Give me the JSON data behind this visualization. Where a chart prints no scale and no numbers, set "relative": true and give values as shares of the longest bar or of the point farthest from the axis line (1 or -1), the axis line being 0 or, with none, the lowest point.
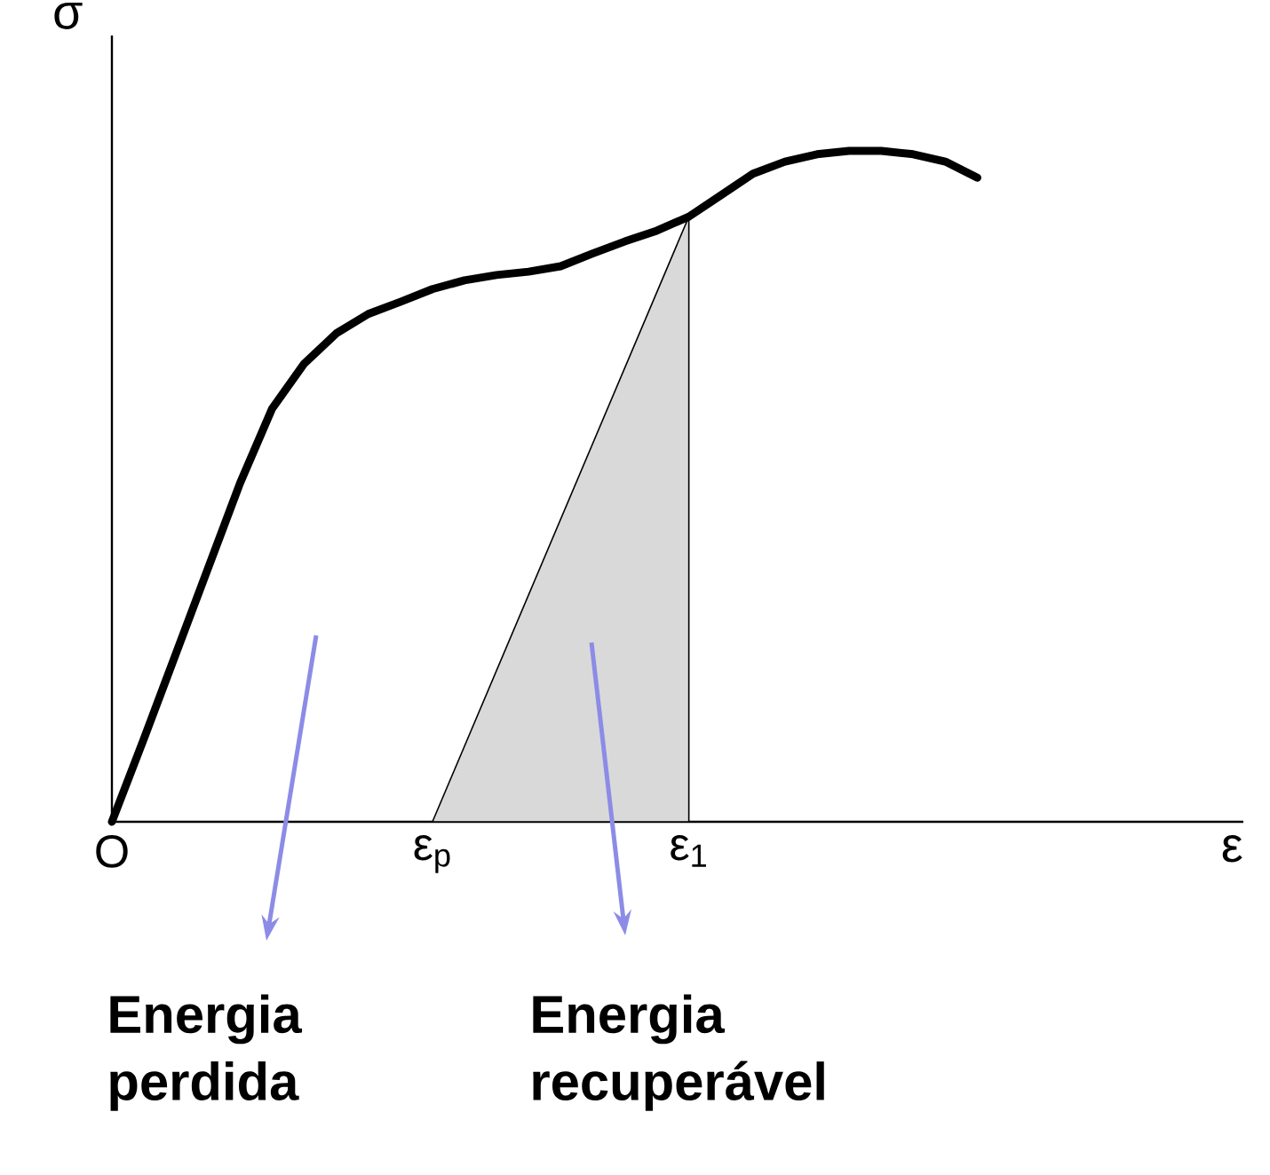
{
  "chart_data": {
    "type": "line",
    "relative": true,
    "xlabel": "ε",
    "ylabel": "σ",
    "marker": "none",
    "line_style": "solid",
    "categories": [
      "O",
      null,
      null,
      null,
      null,
      null,
      null,
      null,
      null,
      null,
      "ε$_{p}$",
      null,
      null,
      null,
      null,
      null,
      null,
      null,
      "ε$_{1}$",
      null,
      null,
      null,
      null,
      null,
      null,
      null,
      null,
      null
    ],
    "series": [
      {
        "type": "area",
        "color": "#d9d9d9",
        "values": [
          null,
          null,
          null,
          null,
          null,
          null,
          null,
          null,
          null,
          null,
          0,
          null,
          null,
          null,
          null,
          null,
          null,
          null,
          0.902,
          null,
          null,
          null,
          null,
          null,
          null,
          null,
          null,
          null
        ]
      },
      {
        "color": "#000000",
        "values": [
          0,
          0.124,
          0.251,
          0.378,
          0.505,
          0.616,
          0.683,
          0.728,
          0.757,
          0.775,
          0.794,
          0.807,
          0.815,
          0.82,
          0.828,
          0.847,
          0.865,
          0.881,
          0.902,
          0.934,
          0.966,
          0.984,
          0.995,
          1.0,
          1.0,
          0.995,
          0.984,
          0.96
        ]
      }
    ],
    "annotations": [
      "Energia perdida",
      "Energia recuperável"
    ]
  }
}
